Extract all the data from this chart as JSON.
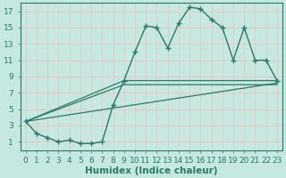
{
  "bg_color": "#c5e8e0",
  "grid_color": "#e8c8c8",
  "line_color": "#2a7a6a",
  "xlabel": "Humidex (Indice chaleur)",
  "xlabel_fontsize": 7.5,
  "tick_fontsize": 6.5,
  "xlim": [
    -0.5,
    23.5
  ],
  "ylim": [
    0,
    18
  ],
  "xticks": [
    0,
    1,
    2,
    3,
    4,
    5,
    6,
    7,
    8,
    9,
    10,
    11,
    12,
    13,
    14,
    15,
    16,
    17,
    18,
    19,
    20,
    21,
    22,
    23
  ],
  "yticks": [
    1,
    3,
    5,
    7,
    9,
    11,
    13,
    15,
    17
  ],
  "curve_main_x": [
    0,
    1,
    2,
    3,
    4,
    5,
    6,
    7,
    8,
    9,
    10,
    11,
    12,
    13,
    14,
    15,
    16,
    17,
    18,
    19,
    20,
    21,
    22,
    23
  ],
  "curve_main_y": [
    3.5,
    2.0,
    1.5,
    1.0,
    1.2,
    0.8,
    0.8,
    1.0,
    5.5,
    8.5,
    12.0,
    15.2,
    15.0,
    12.5,
    15.5,
    17.5,
    17.3,
    16.0,
    15.0,
    11.0,
    15.0,
    11.0,
    11.0,
    8.5
  ],
  "line1_x": [
    0,
    9,
    23
  ],
  "line1_y": [
    3.5,
    8.5,
    8.5
  ],
  "line2_x": [
    0,
    9,
    23
  ],
  "line2_y": [
    3.5,
    8.0,
    8.0
  ],
  "line3_x": [
    0,
    23
  ],
  "line3_y": [
    3.5,
    8.2
  ]
}
